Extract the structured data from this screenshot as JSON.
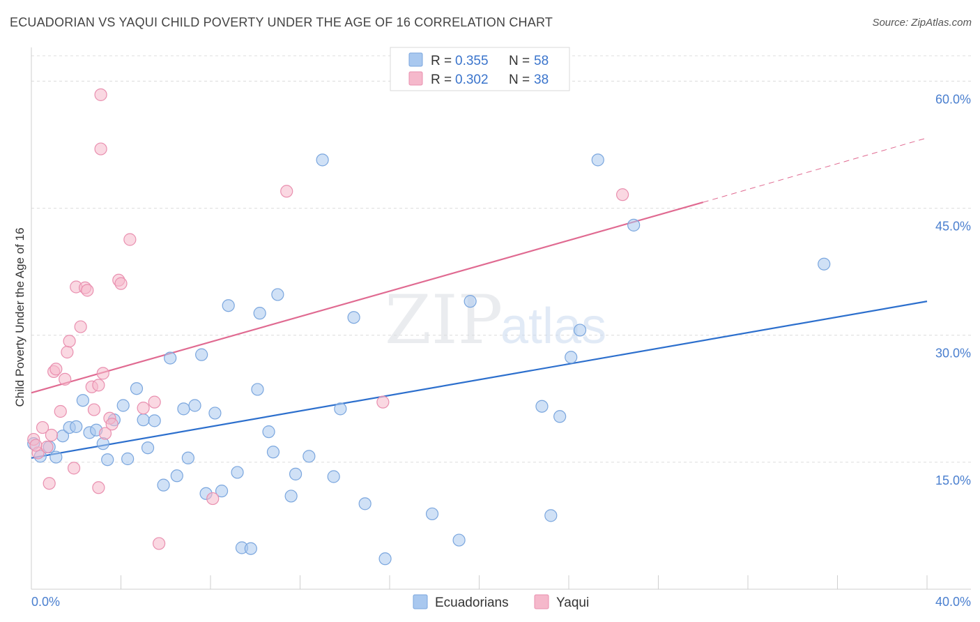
{
  "title": "ECUADORIAN VS YAQUI CHILD POVERTY UNDER THE AGE OF 16 CORRELATION CHART",
  "source": "Source: ZipAtlas.com",
  "watermark": {
    "zip": "ZIP",
    "atlas": "atlas"
  },
  "legend_stats": [
    {
      "r_label": "R = ",
      "r_value": "0.355",
      "n_label": "N = ",
      "n_value": "58",
      "color": "#a9c8ef"
    },
    {
      "r_label": "R = ",
      "r_value": "0.302",
      "n_label": "N = ",
      "n_value": "38",
      "color": "#f5b8cb"
    }
  ],
  "bottom_legend": [
    {
      "label": "Ecuadorians",
      "color": "#a9c8ef"
    },
    {
      "label": "Yaqui",
      "color": "#f5b8cb"
    }
  ],
  "chart_data": {
    "type": "scatter",
    "title": "ECUADORIAN VS YAQUI CHILD POVERTY UNDER THE AGE OF 16 CORRELATION CHART",
    "xlabel": "",
    "ylabel": "Child Poverty Under the Age of 16",
    "xlim": [
      0,
      40
    ],
    "ylim": [
      0,
      63
    ],
    "x_tick_labels": [
      {
        "value": 0,
        "label": "0.0%"
      },
      {
        "value": 40,
        "label": "40.0%"
      }
    ],
    "y_tick_labels": [
      {
        "value": 15,
        "label": "15.0%"
      },
      {
        "value": 30,
        "label": "30.0%"
      },
      {
        "value": 45,
        "label": "45.0%"
      },
      {
        "value": 60,
        "label": "60.0%"
      }
    ],
    "grid": true,
    "series": [
      {
        "name": "Ecuadorians",
        "color": "#a9c8ef",
        "stroke": "#7aa6de",
        "line_color": "#2c6fcd",
        "trend": {
          "x0": 0,
          "y0": 15.5,
          "x1": 40,
          "y1": 34.0
        },
        "points": [
          [
            0.1,
            17.2
          ],
          [
            0.4,
            15.7
          ],
          [
            0.8,
            16.8
          ],
          [
            1.1,
            15.6
          ],
          [
            1.4,
            18.1
          ],
          [
            1.7,
            19.1
          ],
          [
            2.0,
            19.2
          ],
          [
            2.3,
            22.3
          ],
          [
            2.6,
            18.5
          ],
          [
            2.9,
            18.8
          ],
          [
            3.2,
            17.2
          ],
          [
            3.4,
            15.3
          ],
          [
            3.7,
            20.0
          ],
          [
            4.1,
            21.7
          ],
          [
            4.3,
            15.4
          ],
          [
            4.7,
            23.7
          ],
          [
            5.0,
            20.0
          ],
          [
            5.2,
            16.7
          ],
          [
            5.5,
            19.9
          ],
          [
            5.9,
            12.3
          ],
          [
            6.2,
            27.3
          ],
          [
            6.5,
            13.4
          ],
          [
            6.8,
            21.3
          ],
          [
            7.0,
            15.5
          ],
          [
            7.3,
            21.7
          ],
          [
            7.6,
            27.7
          ],
          [
            7.8,
            11.3
          ],
          [
            8.2,
            20.8
          ],
          [
            8.5,
            11.6
          ],
          [
            8.8,
            33.5
          ],
          [
            9.2,
            13.8
          ],
          [
            9.4,
            4.9
          ],
          [
            9.8,
            4.8
          ],
          [
            10.1,
            23.6
          ],
          [
            10.2,
            32.6
          ],
          [
            10.6,
            18.6
          ],
          [
            10.8,
            16.2
          ],
          [
            11.0,
            34.8
          ],
          [
            11.6,
            11.0
          ],
          [
            11.8,
            13.6
          ],
          [
            12.4,
            15.7
          ],
          [
            13.0,
            50.7
          ],
          [
            13.5,
            13.3
          ],
          [
            13.8,
            21.3
          ],
          [
            14.4,
            32.1
          ],
          [
            14.9,
            10.1
          ],
          [
            15.8,
            3.6
          ],
          [
            17.9,
            8.9
          ],
          [
            19.1,
            5.8
          ],
          [
            19.6,
            34.0
          ],
          [
            22.8,
            21.6
          ],
          [
            23.2,
            8.7
          ],
          [
            23.6,
            20.4
          ],
          [
            24.1,
            27.4
          ],
          [
            24.5,
            30.6
          ],
          [
            25.3,
            50.7
          ],
          [
            26.9,
            43.0
          ],
          [
            35.4,
            38.4
          ]
        ]
      },
      {
        "name": "Yaqui",
        "color": "#f5b8cb",
        "stroke": "#e98faf",
        "line_color": "#e06a91",
        "trend": {
          "x0": 0,
          "y0": 23.2,
          "x1": 30.0,
          "y1": 45.7
        },
        "trend_dashed_to": {
          "x": 40,
          "y": 53.3
        },
        "points": [
          [
            0.1,
            17.7
          ],
          [
            0.3,
            16.1
          ],
          [
            0.5,
            19.1
          ],
          [
            0.7,
            16.8
          ],
          [
            0.8,
            12.5
          ],
          [
            0.9,
            18.2
          ],
          [
            1.0,
            25.7
          ],
          [
            1.1,
            26.0
          ],
          [
            1.3,
            21.0
          ],
          [
            1.5,
            24.8
          ],
          [
            1.6,
            28.0
          ],
          [
            1.7,
            29.3
          ],
          [
            1.9,
            14.3
          ],
          [
            2.0,
            35.7
          ],
          [
            2.2,
            31.0
          ],
          [
            2.4,
            35.6
          ],
          [
            2.5,
            35.3
          ],
          [
            2.7,
            23.9
          ],
          [
            2.8,
            21.2
          ],
          [
            3.0,
            24.1
          ],
          [
            3.0,
            12.0
          ],
          [
            3.1,
            58.4
          ],
          [
            3.1,
            52.0
          ],
          [
            3.2,
            25.5
          ],
          [
            3.3,
            18.4
          ],
          [
            3.5,
            20.2
          ],
          [
            3.6,
            19.5
          ],
          [
            3.9,
            36.5
          ],
          [
            4.0,
            36.1
          ],
          [
            4.4,
            41.3
          ],
          [
            5.0,
            21.4
          ],
          [
            5.5,
            22.1
          ],
          [
            5.7,
            5.4
          ],
          [
            8.1,
            10.7
          ],
          [
            11.4,
            47.0
          ],
          [
            15.7,
            22.1
          ],
          [
            26.4,
            46.6
          ],
          [
            0.2,
            17.0
          ]
        ]
      }
    ]
  }
}
